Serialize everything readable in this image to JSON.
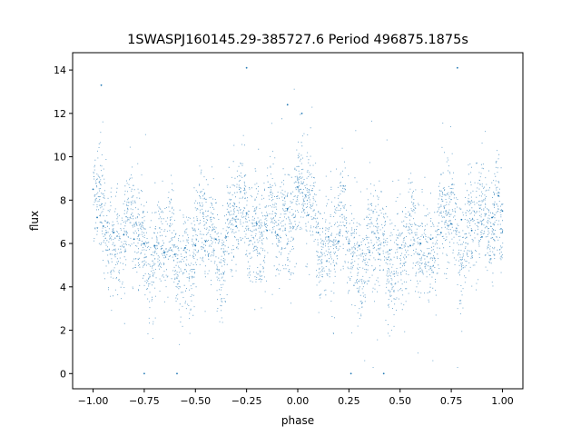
{
  "chart_data": {
    "type": "scatter",
    "title": "1SWASPJ160145.29-385727.6 Period 496875.1875s",
    "xlabel": "phase",
    "ylabel": "flux",
    "xlim": [
      -1.1,
      1.1
    ],
    "ylim": [
      -0.7,
      14.8
    ],
    "xticks": [
      -1.0,
      -0.75,
      -0.5,
      -0.25,
      0.0,
      0.25,
      0.5,
      0.75,
      1.0
    ],
    "xtick_labels": [
      "−1.00",
      "−0.75",
      "−0.50",
      "−0.25",
      "0.00",
      "0.25",
      "0.50",
      "0.75",
      "1.00"
    ],
    "yticks": [
      0,
      2,
      4,
      6,
      8,
      10,
      12,
      14
    ],
    "ytick_labels": [
      "0",
      "2",
      "4",
      "6",
      "8",
      "10",
      "12",
      "14"
    ],
    "grid": false,
    "point_color": "#1f77b4",
    "series": [
      {
        "x": [
          -1.0,
          -0.98,
          -0.95,
          -0.9,
          -0.85,
          -0.8,
          -0.75,
          -0.7,
          -0.65,
          -0.6,
          -0.55,
          -0.5,
          -0.45,
          -0.4,
          -0.35,
          -0.3,
          -0.25,
          -0.2,
          -0.15,
          -0.1,
          -0.05,
          0.0,
          0.05,
          0.1,
          0.15,
          0.2,
          0.25,
          0.3,
          0.35,
          0.4,
          0.45,
          0.5,
          0.55,
          0.6,
          0.65,
          0.7,
          0.75,
          0.8,
          0.85,
          0.9,
          0.95,
          0.98,
          1.0,
          -0.75,
          -0.59,
          0.26,
          0.42,
          -0.96,
          -0.05,
          0.78,
          -0.25,
          0.02
        ],
        "y": [
          8.5,
          7.2,
          6.8,
          6.5,
          6.4,
          6.2,
          6.0,
          5.9,
          5.6,
          5.5,
          5.8,
          5.9,
          6.1,
          6.2,
          6.3,
          6.8,
          7.4,
          6.9,
          6.6,
          6.4,
          7.6,
          8.6,
          7.3,
          6.5,
          6.3,
          6.1,
          6.0,
          5.9,
          5.6,
          5.5,
          5.7,
          5.8,
          5.9,
          6.0,
          6.2,
          6.5,
          6.9,
          7.1,
          6.6,
          6.3,
          7.2,
          8.2,
          7.5,
          0.0,
          0.0,
          0.0,
          0.0,
          13.3,
          12.4,
          14.1,
          14.1,
          12.0
        ]
      }
    ]
  }
}
